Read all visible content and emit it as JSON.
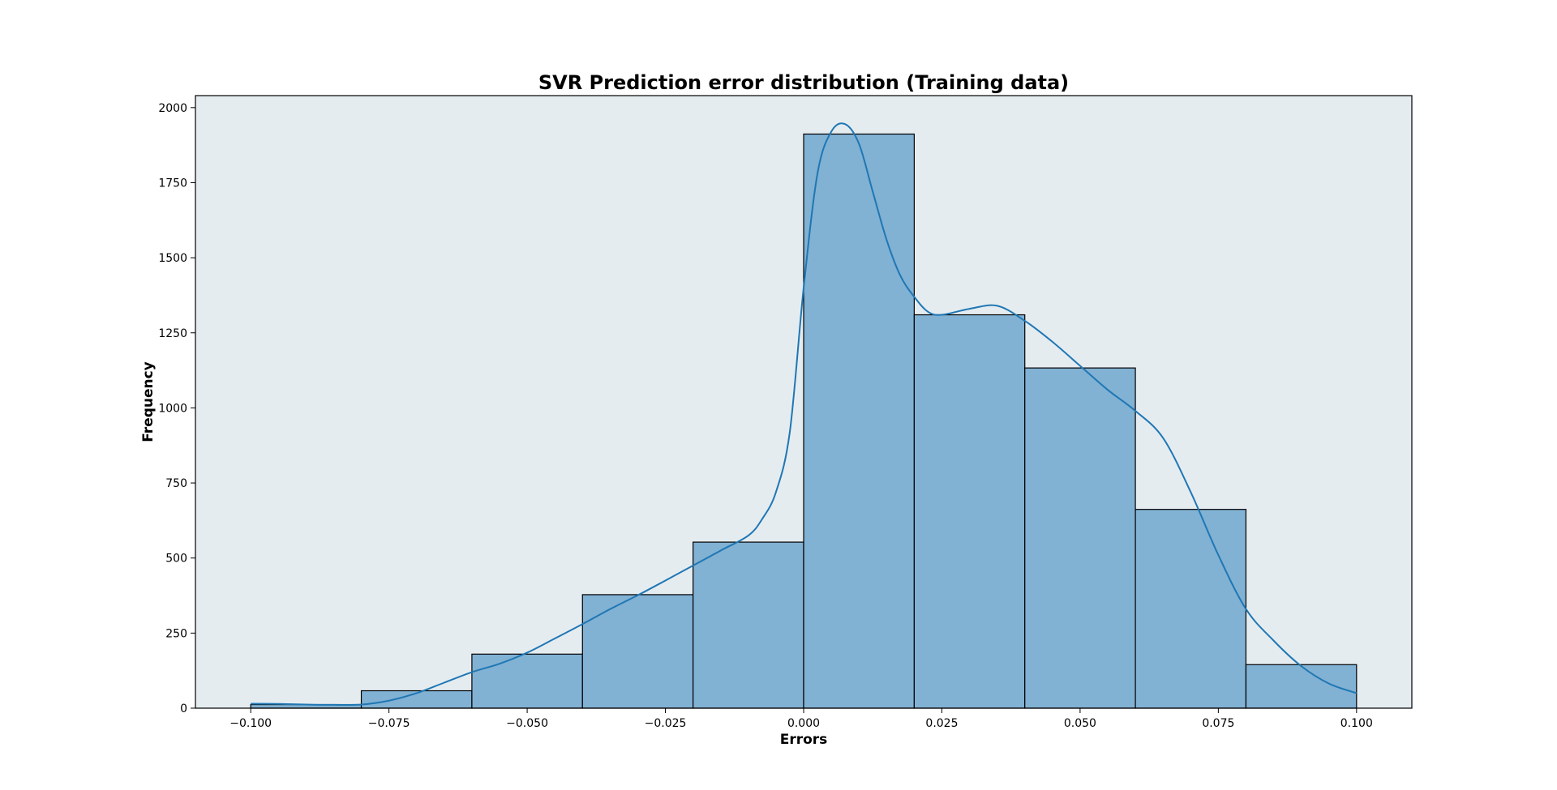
{
  "chart_data": {
    "type": "bar",
    "subtype": "histogram-with-kde",
    "title": "SVR Prediction error distribution (Training data)",
    "xlabel": "Errors",
    "ylabel": "Frequency",
    "xlim": [
      -0.11,
      0.11
    ],
    "ylim": [
      0,
      2040
    ],
    "grid": false,
    "legend": "none",
    "colors": {
      "plot_background": "#e5ecf0",
      "bar_fill": "#81b1d3",
      "bar_edge": "#000000",
      "kde_line": "#1f77b4"
    },
    "x_ticks": [
      {
        "value": -0.1,
        "label": "−0.100"
      },
      {
        "value": -0.075,
        "label": "−0.075"
      },
      {
        "value": -0.05,
        "label": "−0.050"
      },
      {
        "value": -0.025,
        "label": "−0.025"
      },
      {
        "value": 0.0,
        "label": "0.000"
      },
      {
        "value": 0.025,
        "label": "0.025"
      },
      {
        "value": 0.05,
        "label": "0.050"
      },
      {
        "value": 0.075,
        "label": "0.075"
      },
      {
        "value": 0.1,
        "label": "0.100"
      }
    ],
    "y_ticks": [
      {
        "value": 0,
        "label": "0"
      },
      {
        "value": 250,
        "label": "250"
      },
      {
        "value": 500,
        "label": "500"
      },
      {
        "value": 750,
        "label": "750"
      },
      {
        "value": 1000,
        "label": "1000"
      },
      {
        "value": 1250,
        "label": "1250"
      },
      {
        "value": 1500,
        "label": "1500"
      },
      {
        "value": 1750,
        "label": "1750"
      },
      {
        "value": 2000,
        "label": "2000"
      }
    ],
    "bins": [
      {
        "x0": -0.1,
        "x1": -0.08,
        "count": 12
      },
      {
        "x0": -0.08,
        "x1": -0.06,
        "count": 58
      },
      {
        "x0": -0.06,
        "x1": -0.04,
        "count": 180
      },
      {
        "x0": -0.04,
        "x1": -0.02,
        "count": 378
      },
      {
        "x0": -0.02,
        "x1": 0.0,
        "count": 553
      },
      {
        "x0": 0.0,
        "x1": 0.02,
        "count": 1912
      },
      {
        "x0": 0.02,
        "x1": 0.04,
        "count": 1310
      },
      {
        "x0": 0.04,
        "x1": 0.06,
        "count": 1133
      },
      {
        "x0": 0.06,
        "x1": 0.08,
        "count": 662
      },
      {
        "x0": 0.08,
        "x1": 0.1,
        "count": 145
      }
    ],
    "kde": {
      "x": [
        -0.1,
        -0.095,
        -0.09,
        -0.085,
        -0.08,
        -0.075,
        -0.07,
        -0.065,
        -0.06,
        -0.055,
        -0.05,
        -0.045,
        -0.04,
        -0.035,
        -0.03,
        -0.025,
        -0.02,
        -0.015,
        -0.01,
        -0.0075,
        -0.005,
        -0.0025,
        0.0,
        0.0025,
        0.005,
        0.0075,
        0.01,
        0.0125,
        0.015,
        0.0175,
        0.02,
        0.0225,
        0.025,
        0.03,
        0.035,
        0.04,
        0.045,
        0.05,
        0.055,
        0.06,
        0.065,
        0.07,
        0.075,
        0.08,
        0.085,
        0.09,
        0.095,
        0.1
      ],
      "y": [
        15,
        14,
        12,
        11,
        12,
        25,
        50,
        85,
        120,
        148,
        185,
        232,
        280,
        330,
        376,
        425,
        475,
        525,
        575,
        630,
        720,
        920,
        1400,
        1780,
        1920,
        1945,
        1880,
        1720,
        1560,
        1440,
        1370,
        1320,
        1310,
        1330,
        1340,
        1290,
        1220,
        1140,
        1060,
        990,
        900,
        720,
        510,
        330,
        225,
        140,
        82,
        50
      ]
    }
  }
}
